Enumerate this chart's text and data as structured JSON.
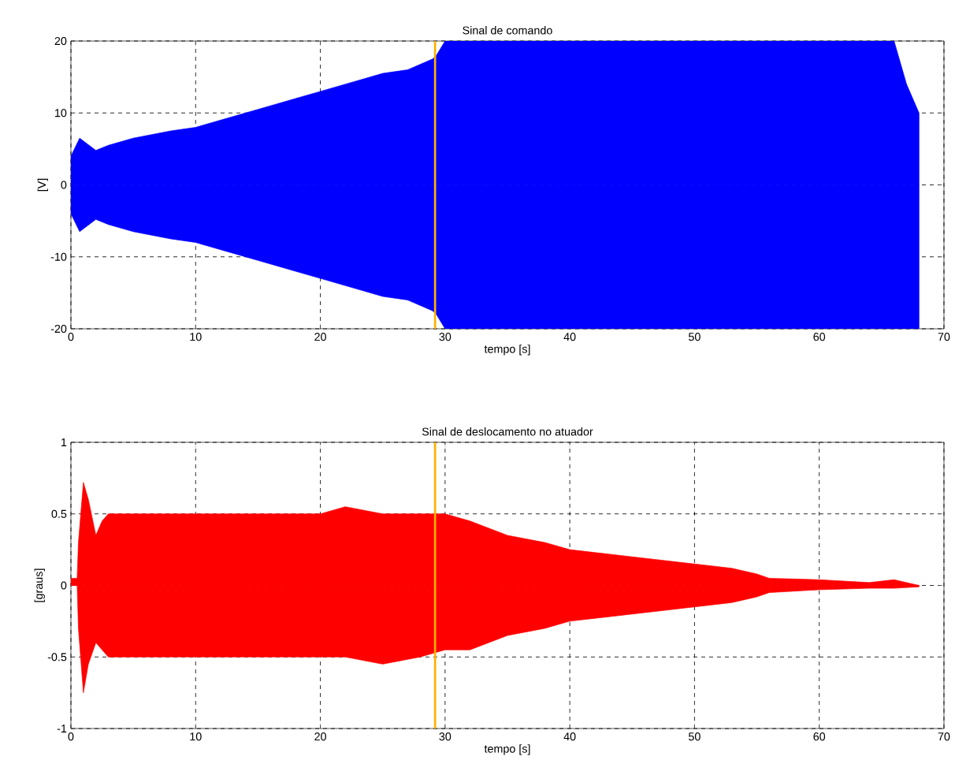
{
  "chart_data": [
    {
      "type": "area",
      "title": "Sinal de comando",
      "xlabel": "tempo [s]",
      "ylabel": "[V]",
      "xlim": [
        0,
        70
      ],
      "ylim": [
        -20,
        20
      ],
      "xticks": [
        0,
        10,
        20,
        30,
        40,
        50,
        60,
        70
      ],
      "yticks": [
        -20,
        -10,
        0,
        10,
        20
      ],
      "grid": true,
      "x": [
        0,
        0.7,
        2,
        3,
        5,
        8,
        10,
        13,
        15,
        18,
        20,
        23,
        25,
        27,
        29,
        29.3,
        30,
        66,
        67,
        68
      ],
      "series": [
        {
          "color": "#0000ff",
          "values": [
            4,
            6.5,
            4.8,
            5.5,
            6.5,
            7.5,
            8,
            9.5,
            10.5,
            12,
            13,
            14.5,
            15.5,
            16,
            17.5,
            18,
            20,
            20,
            14,
            10
          ]
        },
        {
          "color": "#0000ff",
          "values": [
            -4,
            -6.5,
            -4.8,
            -5.5,
            -6.5,
            -7.5,
            -8,
            -9.5,
            -10.5,
            -12,
            -13,
            -14.5,
            -15.5,
            -16,
            -17.5,
            -18,
            -20,
            -20,
            -20,
            -20
          ]
        }
      ],
      "ref_lines": [
        {
          "axis": "x",
          "value": 29.2,
          "color": "#ffb000"
        }
      ]
    },
    {
      "type": "area",
      "title": "Sinal de deslocamento no atuador",
      "xlabel": "tempo [s]",
      "ylabel": "[graus]",
      "xlim": [
        0,
        70
      ],
      "ylim": [
        -1,
        1
      ],
      "xticks": [
        0,
        10,
        20,
        30,
        40,
        50,
        60,
        70
      ],
      "yticks": [
        -1,
        -0.5,
        0,
        0.5,
        1
      ],
      "grid": true,
      "x": [
        0,
        0.5,
        0.6,
        1,
        1.4,
        2,
        2.5,
        3,
        10,
        20,
        22,
        25,
        28,
        30,
        32,
        35,
        38,
        40,
        45,
        50,
        53,
        55,
        56,
        60,
        64,
        66,
        68
      ],
      "series": [
        {
          "color": "#ff0000",
          "values": [
            0.05,
            0.05,
            0.3,
            0.72,
            0.6,
            0.35,
            0.45,
            0.5,
            0.5,
            0.5,
            0.55,
            0.5,
            0.5,
            0.5,
            0.45,
            0.35,
            0.3,
            0.25,
            0.2,
            0.15,
            0.12,
            0.08,
            0.05,
            0.04,
            0.02,
            0.04,
            0.0
          ]
        },
        {
          "color": "#ff0000",
          "values": [
            0,
            0,
            -0.3,
            -0.75,
            -0.55,
            -0.4,
            -0.45,
            -0.5,
            -0.5,
            -0.5,
            -0.5,
            -0.55,
            -0.5,
            -0.45,
            -0.45,
            -0.35,
            -0.3,
            -0.25,
            -0.2,
            -0.15,
            -0.12,
            -0.08,
            -0.05,
            -0.03,
            -0.02,
            -0.02,
            -0.01
          ]
        }
      ],
      "ref_lines": [
        {
          "axis": "x",
          "value": 29.2,
          "color": "#ffb000"
        }
      ]
    }
  ]
}
